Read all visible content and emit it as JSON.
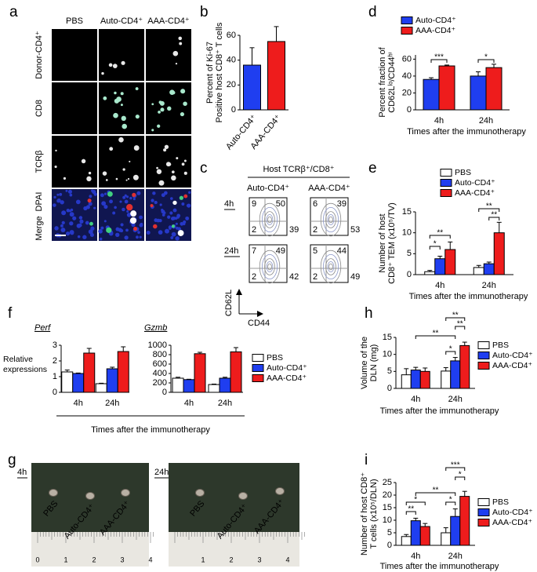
{
  "panel_labels": [
    "a",
    "b",
    "c",
    "d",
    "e",
    "f",
    "g",
    "h",
    "i"
  ],
  "micrograph": {
    "columns": [
      "PBS",
      "Auto-CD4⁺",
      "AAA-CD4⁺"
    ],
    "rows": [
      "Donor-CD4⁺",
      "CD8",
      "TCRβ",
      "DPAI",
      "Merge"
    ]
  },
  "flow": {
    "title": "Host TCRβ⁺/CD8⁺",
    "columns": [
      "Auto-CD4⁺",
      "AAA-CD4⁺"
    ],
    "rows": [
      {
        "label": "4h",
        "quadrants": [
          [
            9,
            50,
            2,
            39
          ],
          [
            6,
            39,
            2,
            53
          ]
        ]
      },
      {
        "label": "24h",
        "quadrants": [
          [
            7,
            49,
            2,
            42
          ],
          [
            5,
            44,
            2,
            49
          ]
        ]
      }
    ],
    "ylabel": "CD62L",
    "xlabel": "CD44"
  },
  "photos": [
    {
      "label": "4h",
      "samples": [
        "PBS",
        "Auto-CD4⁺",
        "AAA-CD4⁺"
      ],
      "ruler": [
        0,
        1,
        2,
        3,
        4
      ]
    },
    {
      "label": "24h",
      "samples": [
        "PBS",
        "Auto-CD4⁺",
        "AAA-CD4⁺"
      ],
      "ruler": [
        1,
        2,
        3,
        4
      ]
    }
  ],
  "panel_f": {
    "ylabel": [
      "Relative",
      "expressions"
    ],
    "xlabel": "Times after the immunotherapy"
  },
  "chart_data": [
    {
      "type": "bar",
      "ylabel": [
        "Percent of Ki-67",
        "Positive host CD8⁺ T cells"
      ],
      "categories": [
        "Auto-CD4⁺",
        "AAA-CD4⁺"
      ],
      "values": [
        36,
        55
      ],
      "errors": [
        14,
        12
      ],
      "colors": [
        "#1f3ef0",
        "#ee1c1c"
      ],
      "ylim": [
        0,
        60
      ],
      "yticks": [
        0,
        20,
        40,
        60
      ]
    },
    {
      "type": "bar",
      "ylabel": [
        "Percent fraction of",
        "CD62Lˡᵒ/CD44ʰⁱ"
      ],
      "xlabel": "Times after the immunotherapy",
      "categories": [
        "4h",
        "24h"
      ],
      "series": [
        {
          "name": "Auto-CD4⁺",
          "color": "#1f3ef0",
          "values": [
            36,
            40
          ],
          "errors": [
            2,
            5
          ]
        },
        {
          "name": "AAA-CD4⁺",
          "color": "#ee1c1c",
          "values": [
            52,
            50
          ],
          "errors": [
            1,
            4
          ]
        }
      ],
      "ylim": [
        0,
        65
      ],
      "yticks": [
        0,
        20,
        40,
        60
      ],
      "annotations": [
        "***",
        "*"
      ]
    },
    {
      "type": "bar",
      "ylabel": [
        "Number of host",
        "CD8⁺ TEM (x10⁵/TV)"
      ],
      "xlabel": "Times after the immunotherapy",
      "categories": [
        "4h",
        "24h"
      ],
      "series": [
        {
          "name": "PBS",
          "color": "#ffffff",
          "values": [
            0.7,
            1.7
          ],
          "errors": [
            0.3,
            0.5
          ]
        },
        {
          "name": "Auto-CD4⁺",
          "color": "#1f3ef0",
          "values": [
            3.8,
            2.6
          ],
          "errors": [
            0.6,
            0.4
          ]
        },
        {
          "name": "AAA-CD4⁺",
          "color": "#ee1c1c",
          "values": [
            6.0,
            10.0
          ],
          "errors": [
            1.8,
            2.5
          ]
        }
      ],
      "ylim": [
        0,
        15
      ],
      "yticks": [
        0,
        5,
        10,
        15
      ],
      "annotations": [
        "*",
        "**",
        "**",
        "**"
      ]
    },
    {
      "type": "bar",
      "title": "Perf",
      "categories": [
        "4h",
        "24h"
      ],
      "series": [
        {
          "color": "#ffffff",
          "values": [
            1.3,
            0.55
          ],
          "errors": [
            0.12,
            0.03
          ]
        },
        {
          "color": "#1f3ef0",
          "values": [
            1.2,
            1.5
          ],
          "errors": [
            0.03,
            0.1
          ]
        },
        {
          "color": "#ee1c1c",
          "values": [
            2.5,
            2.6
          ],
          "errors": [
            0.3,
            0.3
          ]
        }
      ],
      "ylim": [
        0,
        3
      ],
      "yticks": [
        0,
        1,
        2,
        3
      ]
    },
    {
      "type": "bar",
      "title": "Gzmb",
      "categories": [
        "4h",
        "24h"
      ],
      "series": [
        {
          "name": "PBS",
          "color": "#ffffff",
          "values": [
            300,
            165
          ],
          "errors": [
            20,
            10
          ]
        },
        {
          "name": "Auto-CD4⁺",
          "color": "#1f3ef0",
          "values": [
            270,
            300
          ],
          "errors": [
            8,
            20
          ]
        },
        {
          "name": "AAA-CD4⁺",
          "color": "#ee1c1c",
          "values": [
            820,
            860
          ],
          "errors": [
            30,
            90
          ]
        }
      ],
      "ylim": [
        0,
        1000
      ],
      "yticks": [
        0,
        200,
        400,
        600,
        800,
        1000
      ]
    },
    {
      "type": "bar",
      "ylabel": [
        "Volume of the",
        "DLN (mg)"
      ],
      "xlabel": "Times after the immunotherapy",
      "categories": [
        "4h",
        "24h"
      ],
      "series": [
        {
          "name": "PBS",
          "color": "#ffffff",
          "values": [
            4.0,
            5.1
          ],
          "errors": [
            1.8,
            1.0
          ]
        },
        {
          "name": "Auto-CD4⁺",
          "color": "#1f3ef0",
          "values": [
            5.4,
            8.1
          ],
          "errors": [
            0.8,
            1.0
          ]
        },
        {
          "name": "AAA-CD4⁺",
          "color": "#ee1c1c",
          "values": [
            5.0,
            12.6
          ],
          "errors": [
            1.0,
            1.0
          ]
        }
      ],
      "ylim": [
        0,
        15
      ],
      "yticks": [
        0,
        5,
        10,
        15
      ],
      "annotations": [
        "**",
        "**",
        "**",
        "*"
      ]
    },
    {
      "type": "bar",
      "ylabel": [
        "Number of host CD8⁺",
        "T cells (x10⁵/DLN)"
      ],
      "xlabel": "Times after the immunotherapy",
      "categories": [
        "4h",
        "24h"
      ],
      "series": [
        {
          "name": "PBS",
          "color": "#ffffff",
          "values": [
            3.5,
            5.0
          ],
          "errors": [
            0.8,
            2.0
          ]
        },
        {
          "name": "Auto-CD4⁺",
          "color": "#1f3ef0",
          "values": [
            9.8,
            11.5
          ],
          "errors": [
            1.0,
            3.0
          ]
        },
        {
          "name": "AAA-CD4⁺",
          "color": "#ee1c1c",
          "values": [
            7.5,
            19.5
          ],
          "errors": [
            1.2,
            2.0
          ]
        }
      ],
      "ylim": [
        0,
        25
      ],
      "yticks": [
        0,
        5,
        10,
        15,
        20,
        25
      ],
      "annotations": [
        "*",
        "**",
        "**",
        "***",
        "*",
        "*"
      ]
    }
  ]
}
